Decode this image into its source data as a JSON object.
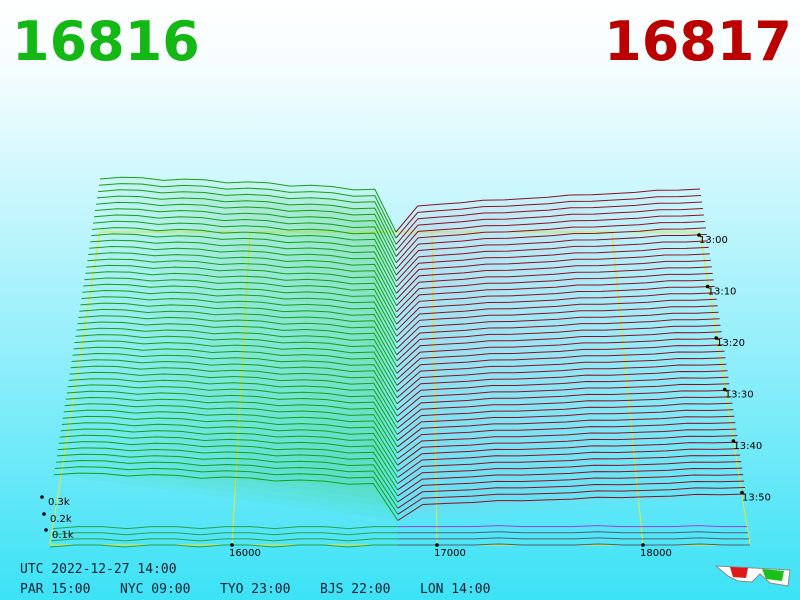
{
  "header": {
    "bid": "16816",
    "ask": "16817"
  },
  "depth_labels": [
    "0.3k",
    "0.2k",
    "0.1k"
  ],
  "price_labels": [
    "16000",
    "17000",
    "18000"
  ],
  "time_labels": [
    "13:00",
    "13:10",
    "13:20",
    "13:30",
    "13:40",
    "13:50"
  ],
  "footer": {
    "utc": "UTC 2022-12-27 14:00",
    "clocks": [
      "PAR 15:00",
      "NYC 09:00",
      "TYO 23:00",
      "BJS 22:00",
      "LON 14:00"
    ]
  }
}
